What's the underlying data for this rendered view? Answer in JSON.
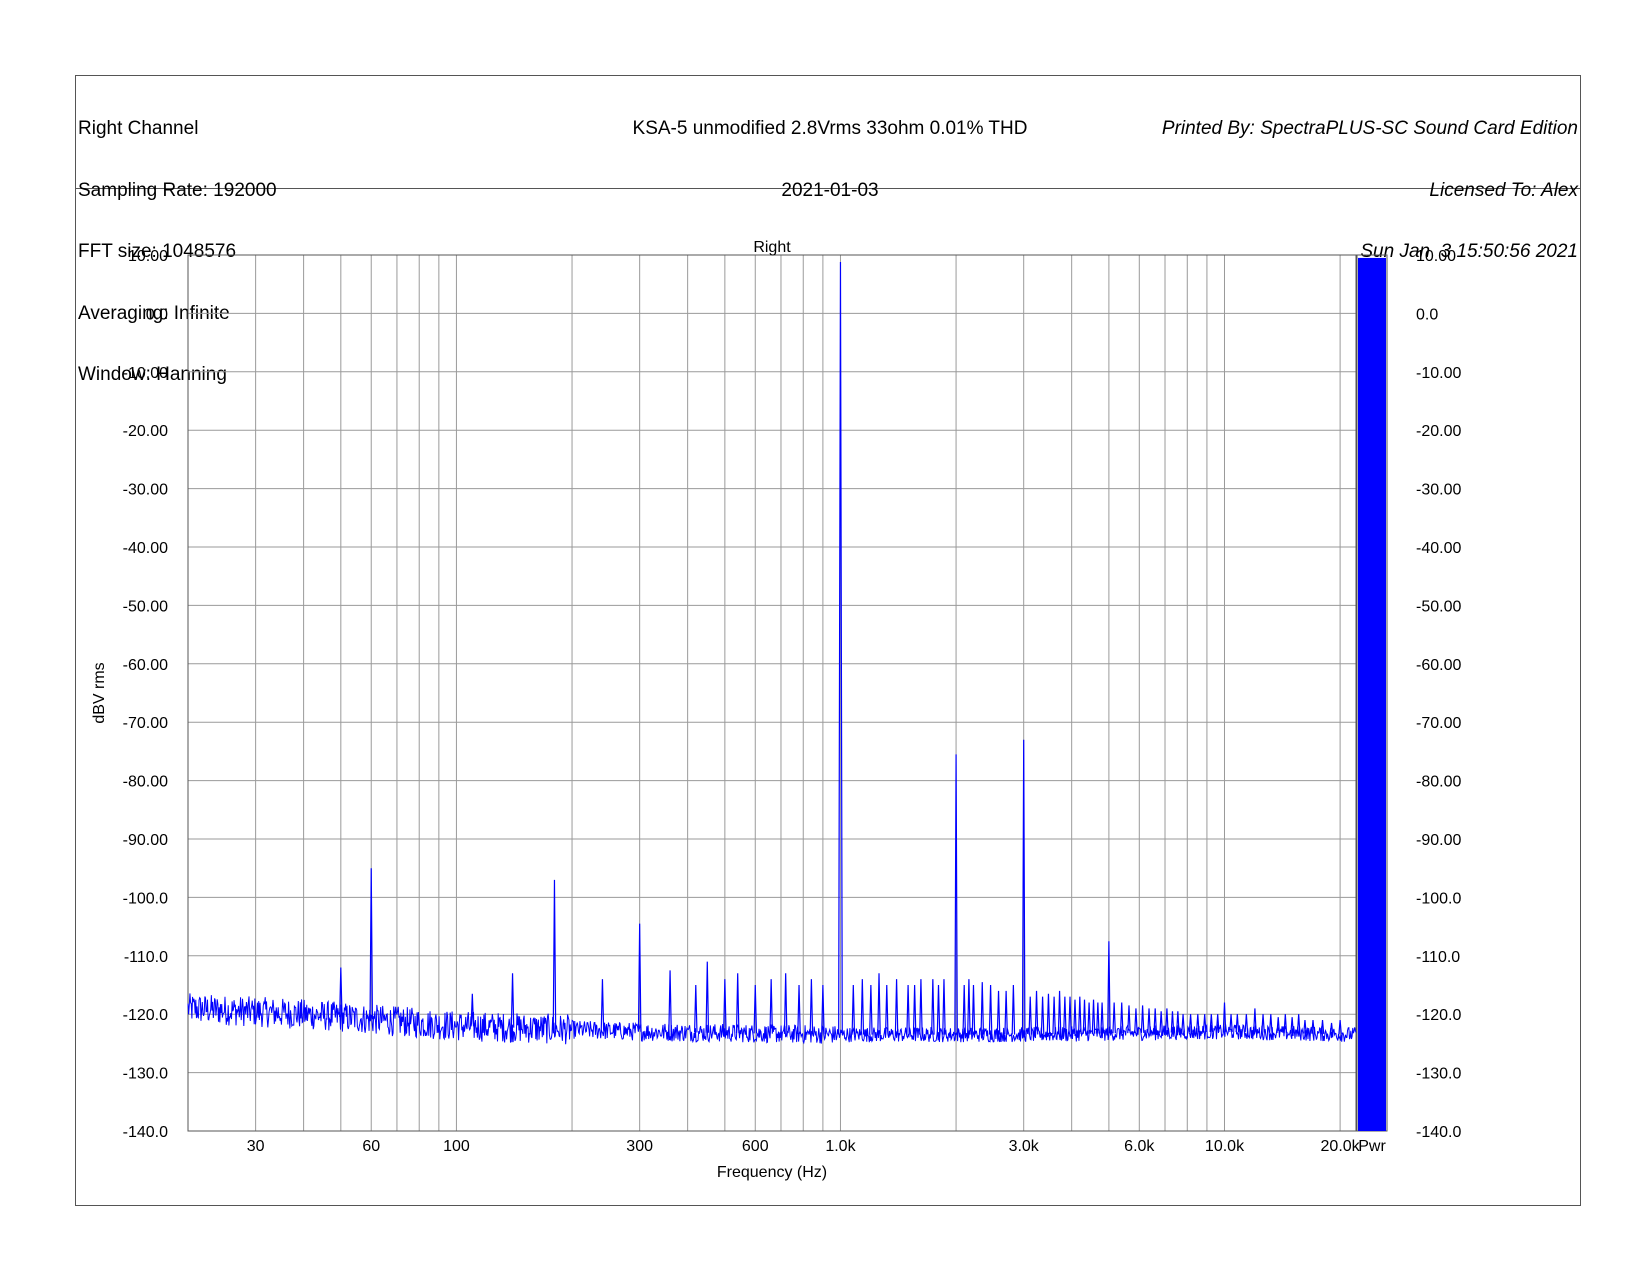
{
  "header": {
    "left": [
      "Right Channel",
      "Sampling Rate: 192000",
      "FFT size: 1048576",
      "Averaging: Infinite",
      "Window: Hanning"
    ],
    "center": [
      "KSA-5 unmodified 2.8Vrms 33ohm 0.01% THD",
      "2021-01-03"
    ],
    "right": [
      "Printed By: SpectraPLUS-SC Sound Card Edition",
      "Licensed To: Alex",
      "Sun Jan  3 15:50:56 2021"
    ]
  },
  "colors": {
    "trace": "#0000ff",
    "grid": "#9a9a9a",
    "frame": "#555555"
  },
  "chart_data": {
    "type": "line",
    "title": "Right",
    "xlabel": "Frequency (Hz)",
    "ylabel": "dBV rms",
    "x_scale": "log",
    "xlim": [
      20,
      22000
    ],
    "ylim": [
      -140,
      10
    ],
    "grid": true,
    "x_tick_labels": [
      {
        "value": 30,
        "label": "30"
      },
      {
        "value": 60,
        "label": "60"
      },
      {
        "value": 100,
        "label": "100"
      },
      {
        "value": 300,
        "label": "300"
      },
      {
        "value": 600,
        "label": "600"
      },
      {
        "value": 1000,
        "label": "1.0k"
      },
      {
        "value": 3000,
        "label": "3.0k"
      },
      {
        "value": 6000,
        "label": "6.0k"
      },
      {
        "value": 10000,
        "label": "10.0k"
      },
      {
        "value": 20000,
        "label": "20.0k"
      }
    ],
    "y_tick_labels": [
      {
        "value": 10,
        "label": "10.00"
      },
      {
        "value": 0,
        "label": "0.0"
      },
      {
        "value": -10,
        "label": "-10.00"
      },
      {
        "value": -20,
        "label": "-20.00"
      },
      {
        "value": -30,
        "label": "-30.00"
      },
      {
        "value": -40,
        "label": "-40.00"
      },
      {
        "value": -50,
        "label": "-50.00"
      },
      {
        "value": -60,
        "label": "-60.00"
      },
      {
        "value": -70,
        "label": "-70.00"
      },
      {
        "value": -80,
        "label": "-80.00"
      },
      {
        "value": -90,
        "label": "-90.00"
      },
      {
        "value": -100,
        "label": "-100.0"
      },
      {
        "value": -110,
        "label": "-110.0"
      },
      {
        "value": -120,
        "label": "-120.0"
      },
      {
        "value": -130,
        "label": "-130.0"
      },
      {
        "value": -140,
        "label": "-140.0"
      }
    ],
    "noise_floor": [
      {
        "x": 20,
        "y": -119
      },
      {
        "x": 40,
        "y": -120
      },
      {
        "x": 100,
        "y": -122
      },
      {
        "x": 300,
        "y": -123
      },
      {
        "x": 1000,
        "y": -123.5
      },
      {
        "x": 3000,
        "y": -123.5
      },
      {
        "x": 10000,
        "y": -123
      },
      {
        "x": 22000,
        "y": -123.5
      }
    ],
    "peaks": [
      {
        "x": 50,
        "y": -112
      },
      {
        "x": 60,
        "y": -95
      },
      {
        "x": 110,
        "y": -116.5
      },
      {
        "x": 140,
        "y": -113
      },
      {
        "x": 180,
        "y": -97
      },
      {
        "x": 240,
        "y": -114
      },
      {
        "x": 300,
        "y": -104.5
      },
      {
        "x": 360,
        "y": -112.5
      },
      {
        "x": 420,
        "y": -115
      },
      {
        "x": 450,
        "y": -111
      },
      {
        "x": 500,
        "y": -114
      },
      {
        "x": 540,
        "y": -113
      },
      {
        "x": 600,
        "y": -115
      },
      {
        "x": 660,
        "y": -114
      },
      {
        "x": 720,
        "y": -113
      },
      {
        "x": 780,
        "y": -115
      },
      {
        "x": 840,
        "y": -114
      },
      {
        "x": 900,
        "y": -115
      },
      {
        "x": 1000,
        "y": 8.8
      },
      {
        "x": 1080,
        "y": -115
      },
      {
        "x": 1140,
        "y": -114
      },
      {
        "x": 1200,
        "y": -115
      },
      {
        "x": 1260,
        "y": -113
      },
      {
        "x": 1320,
        "y": -115
      },
      {
        "x": 1400,
        "y": -114
      },
      {
        "x": 1500,
        "y": -115
      },
      {
        "x": 1560,
        "y": -115
      },
      {
        "x": 1620,
        "y": -114
      },
      {
        "x": 1740,
        "y": -114
      },
      {
        "x": 1800,
        "y": -115
      },
      {
        "x": 1860,
        "y": -114
      },
      {
        "x": 2000,
        "y": -75.5
      },
      {
        "x": 2100,
        "y": -115
      },
      {
        "x": 2160,
        "y": -114
      },
      {
        "x": 2220,
        "y": -115
      },
      {
        "x": 2340,
        "y": -114.5
      },
      {
        "x": 2460,
        "y": -115
      },
      {
        "x": 2580,
        "y": -116
      },
      {
        "x": 2700,
        "y": -116
      },
      {
        "x": 2820,
        "y": -115
      },
      {
        "x": 3000,
        "y": -73
      },
      {
        "x": 3120,
        "y": -117
      },
      {
        "x": 3240,
        "y": -116
      },
      {
        "x": 3360,
        "y": -117
      },
      {
        "x": 3480,
        "y": -116.5
      },
      {
        "x": 3600,
        "y": -117
      },
      {
        "x": 3720,
        "y": -116
      },
      {
        "x": 3840,
        "y": -117
      },
      {
        "x": 3960,
        "y": -117
      },
      {
        "x": 4080,
        "y": -117.5
      },
      {
        "x": 4200,
        "y": -117
      },
      {
        "x": 4320,
        "y": -117.5
      },
      {
        "x": 4440,
        "y": -118
      },
      {
        "x": 4560,
        "y": -117.5
      },
      {
        "x": 4680,
        "y": -118
      },
      {
        "x": 4800,
        "y": -118
      },
      {
        "x": 5000,
        "y": -107.5
      },
      {
        "x": 5160,
        "y": -118
      },
      {
        "x": 5400,
        "y": -118
      },
      {
        "x": 5640,
        "y": -118.5
      },
      {
        "x": 5880,
        "y": -119
      },
      {
        "x": 6120,
        "y": -118.5
      },
      {
        "x": 6360,
        "y": -119
      },
      {
        "x": 6600,
        "y": -119
      },
      {
        "x": 6840,
        "y": -119.5
      },
      {
        "x": 7080,
        "y": -119
      },
      {
        "x": 7320,
        "y": -119.5
      },
      {
        "x": 7560,
        "y": -119.5
      },
      {
        "x": 7800,
        "y": -120
      },
      {
        "x": 8160,
        "y": -120
      },
      {
        "x": 8520,
        "y": -120
      },
      {
        "x": 8880,
        "y": -120
      },
      {
        "x": 9240,
        "y": -120
      },
      {
        "x": 9600,
        "y": -120
      },
      {
        "x": 10000,
        "y": -118
      },
      {
        "x": 10400,
        "y": -120
      },
      {
        "x": 10800,
        "y": -120
      },
      {
        "x": 11400,
        "y": -120
      },
      {
        "x": 12000,
        "y": -119
      },
      {
        "x": 12600,
        "y": -120
      },
      {
        "x": 13200,
        "y": -120
      },
      {
        "x": 13800,
        "y": -120.5
      },
      {
        "x": 14400,
        "y": -120
      },
      {
        "x": 15000,
        "y": -120.5
      },
      {
        "x": 15600,
        "y": -120
      },
      {
        "x": 16200,
        "y": -121
      },
      {
        "x": 17000,
        "y": -121
      },
      {
        "x": 18000,
        "y": -121
      },
      {
        "x": 19000,
        "y": -121.5
      },
      {
        "x": 20000,
        "y": -121
      }
    ],
    "side_bar": {
      "label": "Pwr",
      "level_db": 9.5
    }
  }
}
